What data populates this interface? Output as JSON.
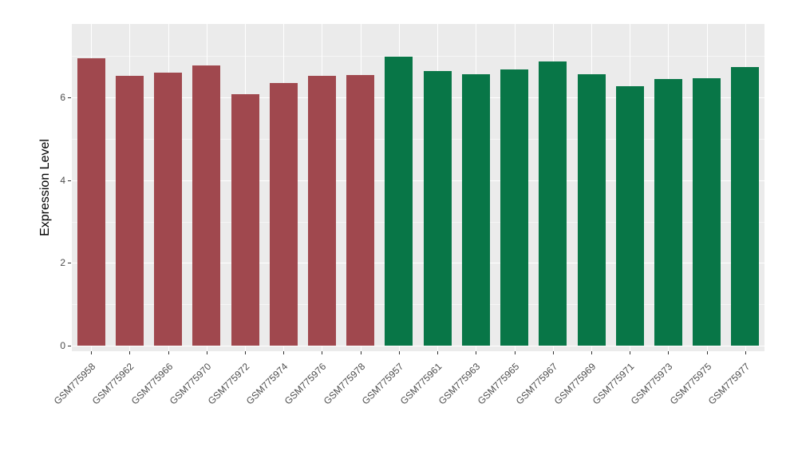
{
  "figure": {
    "background": "#FFFFFF",
    "panel_background": "#EBEBEB",
    "grid_color": "#FFFFFF",
    "axis_text_color": "#4D4D4D",
    "axis_title_color": "#000000"
  },
  "chart_data": {
    "type": "bar",
    "title": "",
    "xlabel": "",
    "ylabel": "Expression Level",
    "ylim": [
      0,
      7.78
    ],
    "yticks": [
      0,
      2,
      4,
      6
    ],
    "yticklabels": [
      "0",
      "2",
      "4",
      "6"
    ],
    "minor_yticks": [
      1,
      3,
      5,
      7
    ],
    "grid": true,
    "legend": "none",
    "categories": [
      "GSM775958",
      "GSM775962",
      "GSM775966",
      "GSM775970",
      "GSM775972",
      "GSM775974",
      "GSM775976",
      "GSM775978",
      "GSM775957",
      "GSM775961",
      "GSM775963",
      "GSM775965",
      "GSM775967",
      "GSM775969",
      "GSM775971",
      "GSM775973",
      "GSM775975",
      "GSM775977"
    ],
    "values": [
      6.95,
      6.52,
      6.6,
      6.78,
      6.08,
      6.35,
      6.53,
      6.55,
      6.98,
      6.65,
      6.57,
      6.68,
      6.88,
      6.57,
      6.27,
      6.45,
      6.47,
      6.73
    ],
    "bar_groups": [
      "group1",
      "group1",
      "group1",
      "group1",
      "group1",
      "group1",
      "group1",
      "group1",
      "group2",
      "group2",
      "group2",
      "group2",
      "group2",
      "group2",
      "group2",
      "group2",
      "group2",
      "group2"
    ],
    "group_colors": {
      "group1": "#A0484E",
      "group2": "#087647"
    }
  }
}
